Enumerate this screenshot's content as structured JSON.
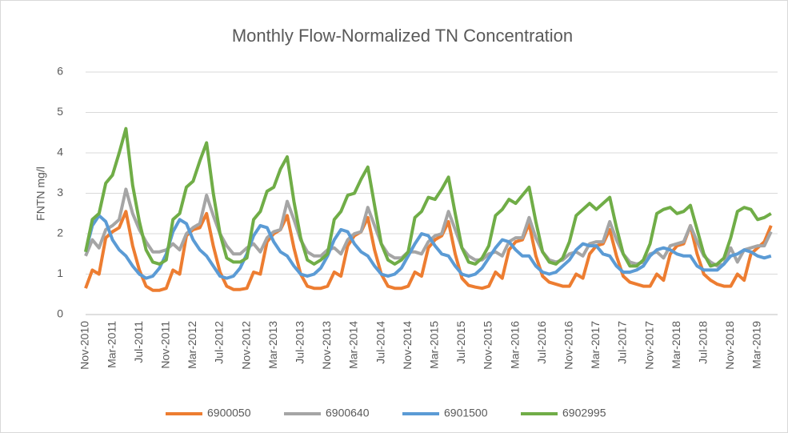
{
  "chart_data": {
    "type": "line",
    "title": "Monthly Flow-Normalized TN Concentration",
    "y_label": "FNTN mg/l",
    "categories": [
      "Nov-2010",
      null,
      null,
      null,
      "Mar-2011",
      null,
      null,
      null,
      "Jul-2011",
      null,
      null,
      null,
      "Nov-2011",
      null,
      null,
      null,
      "Mar-2012",
      null,
      null,
      null,
      "Jul-2012",
      null,
      null,
      null,
      "Nov-2012",
      null,
      null,
      null,
      "Mar-2013",
      null,
      null,
      null,
      "Jul-2013",
      null,
      null,
      null,
      "Nov-2013",
      null,
      null,
      null,
      "Mar-2014",
      null,
      null,
      null,
      "Jul-2014",
      null,
      null,
      null,
      "Nov-2014",
      null,
      null,
      null,
      "Mar-2015",
      null,
      null,
      null,
      "Jul-2015",
      null,
      null,
      null,
      "Nov-2015",
      null,
      null,
      null,
      "Mar-2016",
      null,
      null,
      null,
      "Jul-2016",
      null,
      null,
      null,
      "Nov-2016",
      null,
      null,
      null,
      "Mar-2017",
      null,
      null,
      null,
      "Jul-2017",
      null,
      null,
      null,
      "Nov-2017",
      null,
      null,
      null,
      "Mar-2018",
      null,
      null,
      null,
      "Jul-2018",
      null,
      null,
      null,
      "Nov-2018",
      null,
      null,
      null,
      "Mar-2019",
      null,
      null
    ],
    "series": [
      {
        "name": "6900050",
        "color": "#ed7d31",
        "values": [
          0.65,
          1.1,
          1.0,
          1.9,
          2.05,
          2.15,
          2.55,
          1.7,
          1.1,
          0.7,
          0.6,
          0.6,
          0.65,
          1.1,
          1.0,
          1.95,
          2.1,
          2.15,
          2.5,
          1.7,
          1.05,
          0.7,
          0.62,
          0.62,
          0.65,
          1.05,
          1.0,
          1.8,
          2.0,
          2.1,
          2.45,
          1.65,
          1.0,
          0.7,
          0.65,
          0.65,
          0.7,
          1.05,
          0.95,
          1.7,
          1.95,
          2.05,
          2.4,
          1.6,
          1.0,
          0.7,
          0.65,
          0.65,
          0.7,
          1.05,
          0.95,
          1.65,
          1.85,
          1.95,
          2.3,
          1.5,
          0.9,
          0.72,
          0.68,
          0.65,
          0.7,
          1.05,
          0.9,
          1.6,
          1.8,
          1.85,
          2.25,
          1.45,
          0.95,
          0.8,
          0.75,
          0.7,
          0.7,
          1.0,
          0.9,
          1.5,
          1.7,
          1.75,
          2.1,
          1.45,
          0.95,
          0.8,
          0.75,
          0.7,
          0.7,
          1.0,
          0.85,
          1.5,
          1.7,
          1.75,
          2.2,
          1.5,
          1.0,
          0.85,
          0.75,
          0.7,
          0.7,
          1.0,
          0.85,
          1.5,
          1.65,
          1.8,
          2.2
        ]
      },
      {
        "name": "6900640",
        "color": "#a5a5a5",
        "values": [
          1.45,
          1.85,
          1.65,
          2.1,
          2.2,
          2.35,
          3.1,
          2.5,
          2.1,
          1.8,
          1.55,
          1.55,
          1.6,
          1.75,
          1.6,
          2.0,
          2.15,
          2.25,
          2.95,
          2.45,
          2.0,
          1.7,
          1.5,
          1.5,
          1.65,
          1.75,
          1.55,
          1.9,
          2.05,
          2.1,
          2.8,
          2.35,
          1.85,
          1.55,
          1.45,
          1.45,
          1.6,
          1.65,
          1.5,
          1.85,
          2.0,
          2.05,
          2.65,
          2.2,
          1.75,
          1.5,
          1.4,
          1.4,
          1.55,
          1.55,
          1.5,
          1.8,
          1.95,
          2.0,
          2.55,
          2.1,
          1.65,
          1.45,
          1.35,
          1.35,
          1.5,
          1.55,
          1.45,
          1.8,
          1.9,
          1.9,
          2.4,
          1.9,
          1.55,
          1.35,
          1.3,
          1.35,
          1.5,
          1.55,
          1.45,
          1.75,
          1.8,
          1.8,
          2.3,
          1.85,
          1.5,
          1.3,
          1.25,
          1.3,
          1.5,
          1.55,
          1.4,
          1.7,
          1.75,
          1.8,
          2.2,
          1.8,
          1.45,
          1.3,
          1.2,
          1.25,
          1.65,
          1.3,
          1.6,
          1.65,
          1.7,
          1.7,
          2.05
        ]
      },
      {
        "name": "6901500",
        "color": "#5b9bd5",
        "values": [
          1.55,
          2.2,
          2.45,
          2.3,
          1.85,
          1.6,
          1.45,
          1.2,
          1.0,
          0.9,
          0.95,
          1.15,
          1.5,
          2.05,
          2.35,
          2.25,
          1.85,
          1.6,
          1.45,
          1.2,
          0.95,
          0.9,
          0.95,
          1.15,
          1.5,
          1.95,
          2.2,
          2.15,
          1.8,
          1.55,
          1.45,
          1.2,
          1.0,
          0.95,
          1.0,
          1.15,
          1.45,
          1.85,
          2.1,
          2.05,
          1.75,
          1.55,
          1.45,
          1.2,
          1.0,
          0.95,
          1.0,
          1.15,
          1.45,
          1.75,
          2.0,
          1.95,
          1.7,
          1.5,
          1.45,
          1.2,
          1.0,
          0.95,
          1.0,
          1.15,
          1.4,
          1.65,
          1.85,
          1.8,
          1.6,
          1.45,
          1.45,
          1.2,
          1.05,
          1.0,
          1.05,
          1.2,
          1.35,
          1.6,
          1.75,
          1.7,
          1.7,
          1.5,
          1.45,
          1.2,
          1.05,
          1.05,
          1.1,
          1.2,
          1.45,
          1.6,
          1.65,
          1.6,
          1.5,
          1.45,
          1.45,
          1.2,
          1.1,
          1.1,
          1.1,
          1.25,
          1.45,
          1.5,
          1.6,
          1.55,
          1.45,
          1.4,
          1.45
        ]
      },
      {
        "name": "6902995",
        "color": "#70ad47",
        "values": [
          1.55,
          2.35,
          2.5,
          3.25,
          3.45,
          4.0,
          4.6,
          3.2,
          2.3,
          1.6,
          1.3,
          1.25,
          1.35,
          2.35,
          2.5,
          3.15,
          3.3,
          3.8,
          4.25,
          3.0,
          2.0,
          1.4,
          1.3,
          1.3,
          1.4,
          2.35,
          2.55,
          3.05,
          3.15,
          3.6,
          3.9,
          2.8,
          1.9,
          1.35,
          1.25,
          1.35,
          1.5,
          2.35,
          2.55,
          2.95,
          3.0,
          3.35,
          3.65,
          2.7,
          1.75,
          1.35,
          1.25,
          1.35,
          1.55,
          2.4,
          2.55,
          2.9,
          2.85,
          3.1,
          3.4,
          2.5,
          1.65,
          1.3,
          1.25,
          1.4,
          1.7,
          2.45,
          2.6,
          2.85,
          2.75,
          2.95,
          3.15,
          2.3,
          1.55,
          1.3,
          1.25,
          1.4,
          1.8,
          2.45,
          2.6,
          2.75,
          2.6,
          2.75,
          2.9,
          2.15,
          1.5,
          1.2,
          1.2,
          1.35,
          1.75,
          2.5,
          2.6,
          2.65,
          2.5,
          2.55,
          2.7,
          2.1,
          1.5,
          1.2,
          1.25,
          1.4,
          1.9,
          2.55,
          2.65,
          2.6,
          2.35,
          2.4,
          2.5
        ]
      }
    ],
    "ylim": [
      0,
      6
    ],
    "yticks": [
      0,
      1,
      2,
      3,
      4,
      5,
      6
    ],
    "grid": true,
    "legend": "bottom"
  }
}
